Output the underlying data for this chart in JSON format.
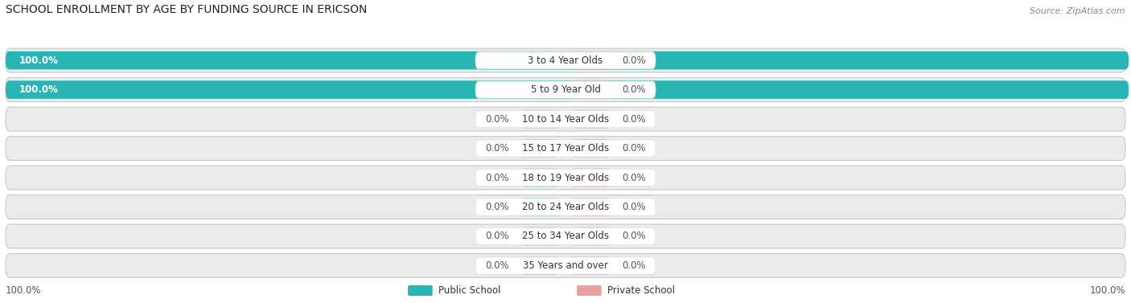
{
  "title": "SCHOOL ENROLLMENT BY AGE BY FUNDING SOURCE IN ERICSON",
  "source": "Source: ZipAtlas.com",
  "categories": [
    "3 to 4 Year Olds",
    "5 to 9 Year Old",
    "10 to 14 Year Olds",
    "15 to 17 Year Olds",
    "18 to 19 Year Olds",
    "20 to 24 Year Olds",
    "25 to 34 Year Olds",
    "35 Years and over"
  ],
  "public_values": [
    100.0,
    100.0,
    0.0,
    0.0,
    0.0,
    0.0,
    0.0,
    0.0
  ],
  "private_values": [
    0.0,
    0.0,
    0.0,
    0.0,
    0.0,
    0.0,
    0.0,
    0.0
  ],
  "public_color": "#2ab5b5",
  "private_color": "#e8a0a0",
  "public_stub_color": "#88d0d0",
  "public_label": "Public School",
  "private_label": "Private School",
  "row_bg_color": "#ebebeb",
  "row_border_color": "#d8d8d8",
  "title_fontsize": 10,
  "source_fontsize": 8,
  "label_fontsize": 8.5,
  "cat_fontsize": 8.5
}
